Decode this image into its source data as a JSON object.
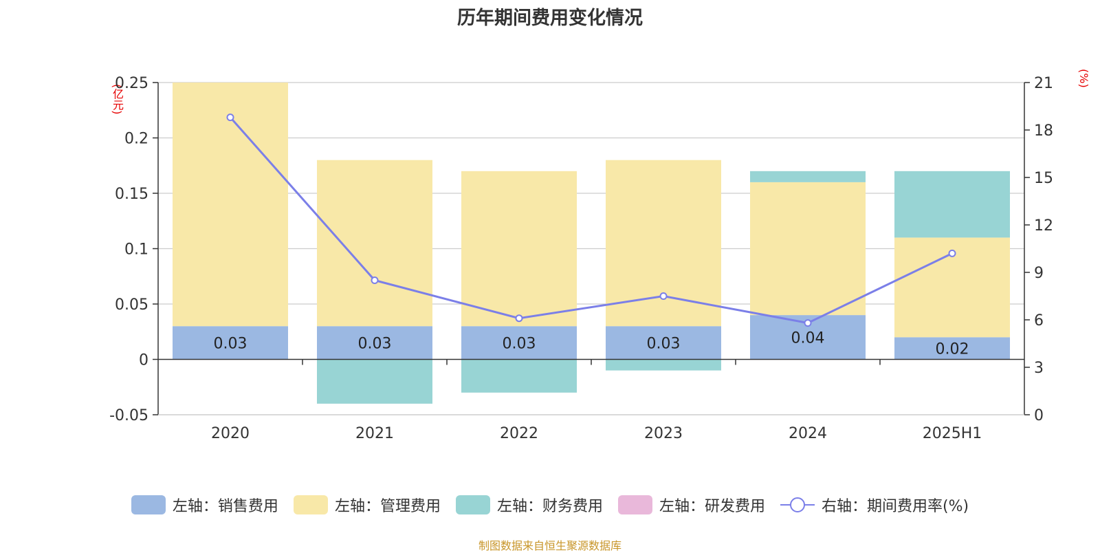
{
  "title": "历年期间费用变化情况",
  "source": "制图数据来自恒生聚源数据库",
  "chart_data": {
    "type": "bar",
    "stacked": true,
    "title": "历年期间费用变化情况",
    "left_unit": "(亿元)",
    "right_unit": "(%)",
    "categories": [
      "2020",
      "2021",
      "2022",
      "2023",
      "2024",
      "2025H1"
    ],
    "ylim_left": [
      -0.05,
      0.25
    ],
    "yticks_left": [
      -0.05,
      0,
      0.05,
      0.1,
      0.15,
      0.2,
      0.25
    ],
    "yticks_left_labels": [
      "-0.05",
      "0",
      "0.05",
      "0.1",
      "0.15",
      "0.2",
      "0.25"
    ],
    "ylim_right": [
      0,
      21
    ],
    "yticks_right": [
      0,
      3,
      6,
      9,
      12,
      15,
      18,
      21
    ],
    "grid": true,
    "legend_position": "bottom",
    "series": [
      {
        "name": "左轴：销售费用",
        "axis": "left",
        "color": "#9bb8e2",
        "values": [
          0.03,
          0.03,
          0.03,
          0.03,
          0.04,
          0.02
        ],
        "labels": [
          "0.03",
          "0.03",
          "0.03",
          "0.03",
          "0.04",
          "0.02"
        ]
      },
      {
        "name": "左轴：管理费用",
        "axis": "left",
        "color": "#f8e8a8",
        "values": [
          0.22,
          0.15,
          0.14,
          0.15,
          0.12,
          0.09
        ]
      },
      {
        "name": "左轴：财务费用",
        "axis": "left",
        "color": "#98d4d4",
        "values": [
          0,
          -0.04,
          -0.03,
          -0.01,
          0.01,
          0.06
        ]
      },
      {
        "name": "左轴：研发费用",
        "axis": "left",
        "color": "#e9b8da",
        "values": [
          0,
          0,
          0,
          0,
          0,
          0
        ]
      },
      {
        "name": "右轴：期间费用率(%)",
        "axis": "right",
        "type": "line",
        "color": "#7b7fe8",
        "values": [
          18.8,
          8.5,
          6.1,
          7.5,
          5.8,
          10.2
        ]
      }
    ]
  }
}
